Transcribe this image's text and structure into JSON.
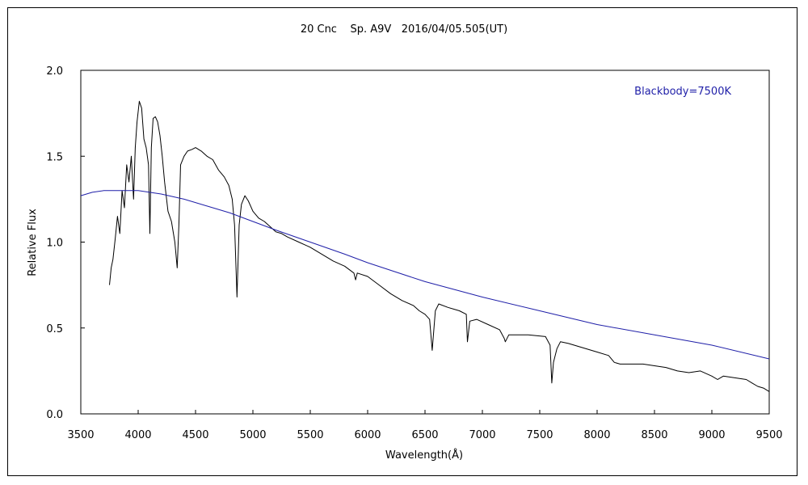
{
  "chart_data": {
    "type": "line",
    "title": "20 Cnc    Sp. A9V   2016/04/05.505(UT)",
    "xlabel": "Wavelength(Å)",
    "ylabel": "Relative Flux",
    "xlim": [
      3500,
      9500
    ],
    "ylim": [
      0.0,
      2.0
    ],
    "x_ticks": [
      "3500",
      "4000",
      "4500",
      "5000",
      "5500",
      "6000",
      "6500",
      "7000",
      "7500",
      "8000",
      "8500",
      "9000",
      "9500"
    ],
    "y_ticks": [
      "0.0",
      "0.5",
      "1.0",
      "1.5",
      "2.0"
    ],
    "grid": false,
    "legend": "top-right",
    "series": [
      {
        "name": "",
        "color": "#000000",
        "x": [
          3750,
          3765,
          3780,
          3800,
          3820,
          3840,
          3860,
          3880,
          3900,
          3920,
          3940,
          3960,
          3975,
          3990,
          4010,
          4030,
          4050,
          4070,
          4090,
          4102,
          4115,
          4130,
          4150,
          4170,
          4190,
          4210,
          4230,
          4260,
          4290,
          4320,
          4340,
          4355,
          4370,
          4400,
          4430,
          4470,
          4500,
          4550,
          4600,
          4650,
          4700,
          4750,
          4790,
          4820,
          4840,
          4861,
          4880,
          4900,
          4930,
          4960,
          5000,
          5050,
          5100,
          5150,
          5200,
          5250,
          5300,
          5400,
          5500,
          5600,
          5700,
          5800,
          5880,
          5895,
          5910,
          6000,
          6100,
          6200,
          6300,
          6400,
          6450,
          6500,
          6540,
          6563,
          6590,
          6620,
          6700,
          6800,
          6860,
          6870,
          6890,
          6950,
          7050,
          7150,
          7190,
          7200,
          7230,
          7300,
          7400,
          7550,
          7590,
          7605,
          7620,
          7650,
          7680,
          7750,
          7850,
          8000,
          8100,
          8150,
          8200,
          8300,
          8400,
          8500,
          8600,
          8700,
          8800,
          8900,
          9000,
          9050,
          9100,
          9200,
          9300,
          9350,
          9400,
          9450,
          9500
        ],
        "y": [
          0.75,
          0.85,
          0.9,
          1.02,
          1.15,
          1.05,
          1.3,
          1.2,
          1.45,
          1.35,
          1.5,
          1.25,
          1.55,
          1.7,
          1.82,
          1.78,
          1.6,
          1.55,
          1.45,
          1.05,
          1.55,
          1.72,
          1.73,
          1.7,
          1.62,
          1.5,
          1.35,
          1.18,
          1.12,
          1.0,
          0.85,
          1.1,
          1.45,
          1.5,
          1.53,
          1.54,
          1.55,
          1.53,
          1.5,
          1.48,
          1.42,
          1.38,
          1.33,
          1.25,
          1.1,
          0.68,
          1.1,
          1.22,
          1.27,
          1.24,
          1.18,
          1.14,
          1.12,
          1.09,
          1.06,
          1.05,
          1.03,
          1.0,
          0.97,
          0.93,
          0.89,
          0.86,
          0.82,
          0.78,
          0.82,
          0.8,
          0.75,
          0.7,
          0.66,
          0.63,
          0.6,
          0.58,
          0.55,
          0.37,
          0.6,
          0.64,
          0.62,
          0.6,
          0.58,
          0.42,
          0.54,
          0.55,
          0.52,
          0.49,
          0.44,
          0.42,
          0.46,
          0.46,
          0.46,
          0.45,
          0.4,
          0.18,
          0.3,
          0.38,
          0.42,
          0.41,
          0.39,
          0.36,
          0.34,
          0.3,
          0.29,
          0.29,
          0.29,
          0.28,
          0.27,
          0.25,
          0.24,
          0.25,
          0.22,
          0.2,
          0.22,
          0.21,
          0.2,
          0.18,
          0.16,
          0.15,
          0.13
        ]
      },
      {
        "name": "Blackbody=7500K",
        "color": "#1f1fa8",
        "x": [
          3500,
          3600,
          3700,
          3800,
          3900,
          4000,
          4200,
          4400,
          4600,
          4800,
          5000,
          5200,
          5500,
          5800,
          6000,
          6500,
          7000,
          7500,
          8000,
          8500,
          9000,
          9500
        ],
        "y": [
          1.27,
          1.29,
          1.3,
          1.3,
          1.3,
          1.3,
          1.28,
          1.25,
          1.21,
          1.17,
          1.12,
          1.07,
          1.0,
          0.93,
          0.88,
          0.77,
          0.68,
          0.6,
          0.52,
          0.46,
          0.4,
          0.32
        ]
      }
    ]
  }
}
